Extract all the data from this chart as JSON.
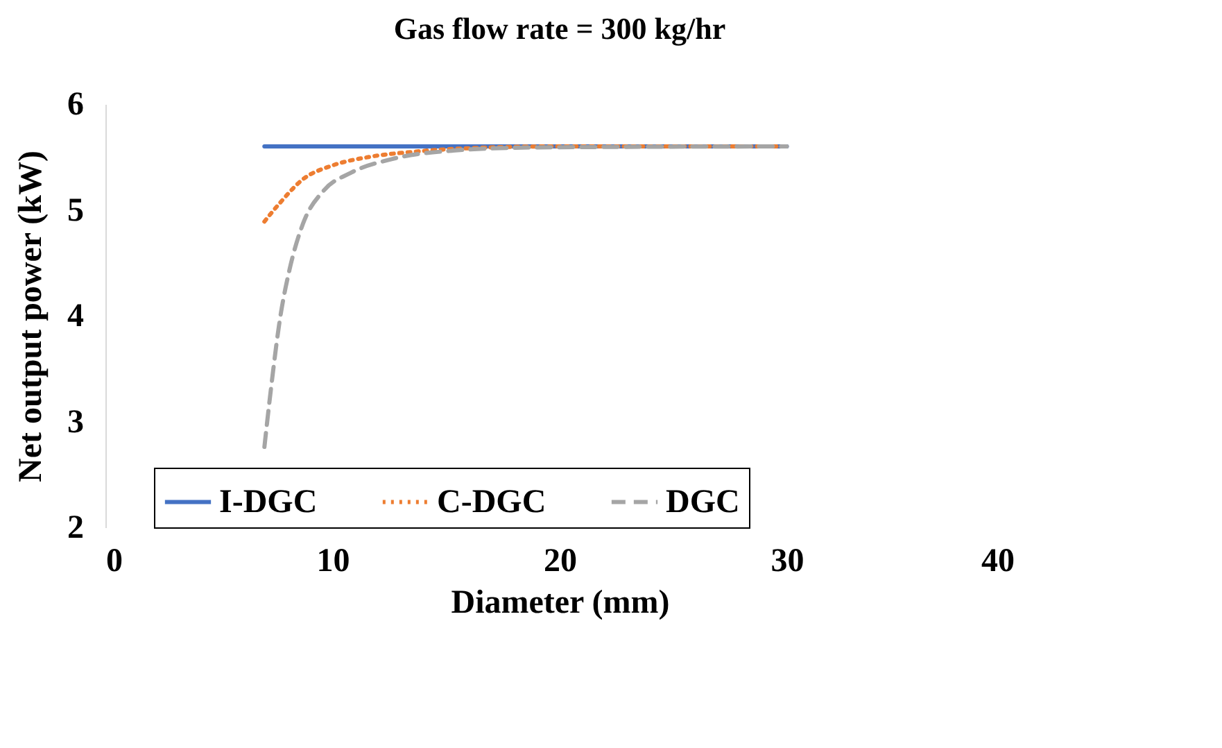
{
  "chart_data": {
    "type": "line",
    "title": "Gas flow rate = 300 kg/hr",
    "xlabel": "Diameter (mm)",
    "ylabel": "Net output power (kW)",
    "xlim": [
      0,
      40
    ],
    "xticks": [
      0,
      10,
      20,
      30,
      40
    ],
    "ylim": [
      2,
      6
    ],
    "yticks": [
      2,
      3,
      4,
      5,
      6
    ],
    "grid": false,
    "legend": "bottom",
    "marker": "none",
    "series": [
      {
        "name": "I-DGC",
        "color": "#4472c4",
        "line_style": "solid",
        "x": [
          7,
          30
        ],
        "values": [
          5.6,
          5.6
        ]
      },
      {
        "name": "C-DGC",
        "color": "#ed7d31",
        "line_style": "dotted",
        "x": [
          7,
          7.7,
          8.7,
          10,
          11.6,
          13.6,
          15.7,
          19.8,
          30
        ],
        "values": [
          4.89,
          5.07,
          5.29,
          5.42,
          5.5,
          5.55,
          5.58,
          5.6,
          5.6
        ]
      },
      {
        "name": "DGC",
        "color": "#a5a5a5",
        "line_style": "dashed",
        "x": [
          7,
          7.3,
          7.7,
          8.1,
          8.7,
          9.6,
          10.8,
          12.6,
          15.3,
          18.8,
          30
        ],
        "values": [
          2.76,
          3.33,
          3.99,
          4.43,
          4.87,
          5.18,
          5.35,
          5.48,
          5.56,
          5.59,
          5.6
        ]
      }
    ]
  }
}
